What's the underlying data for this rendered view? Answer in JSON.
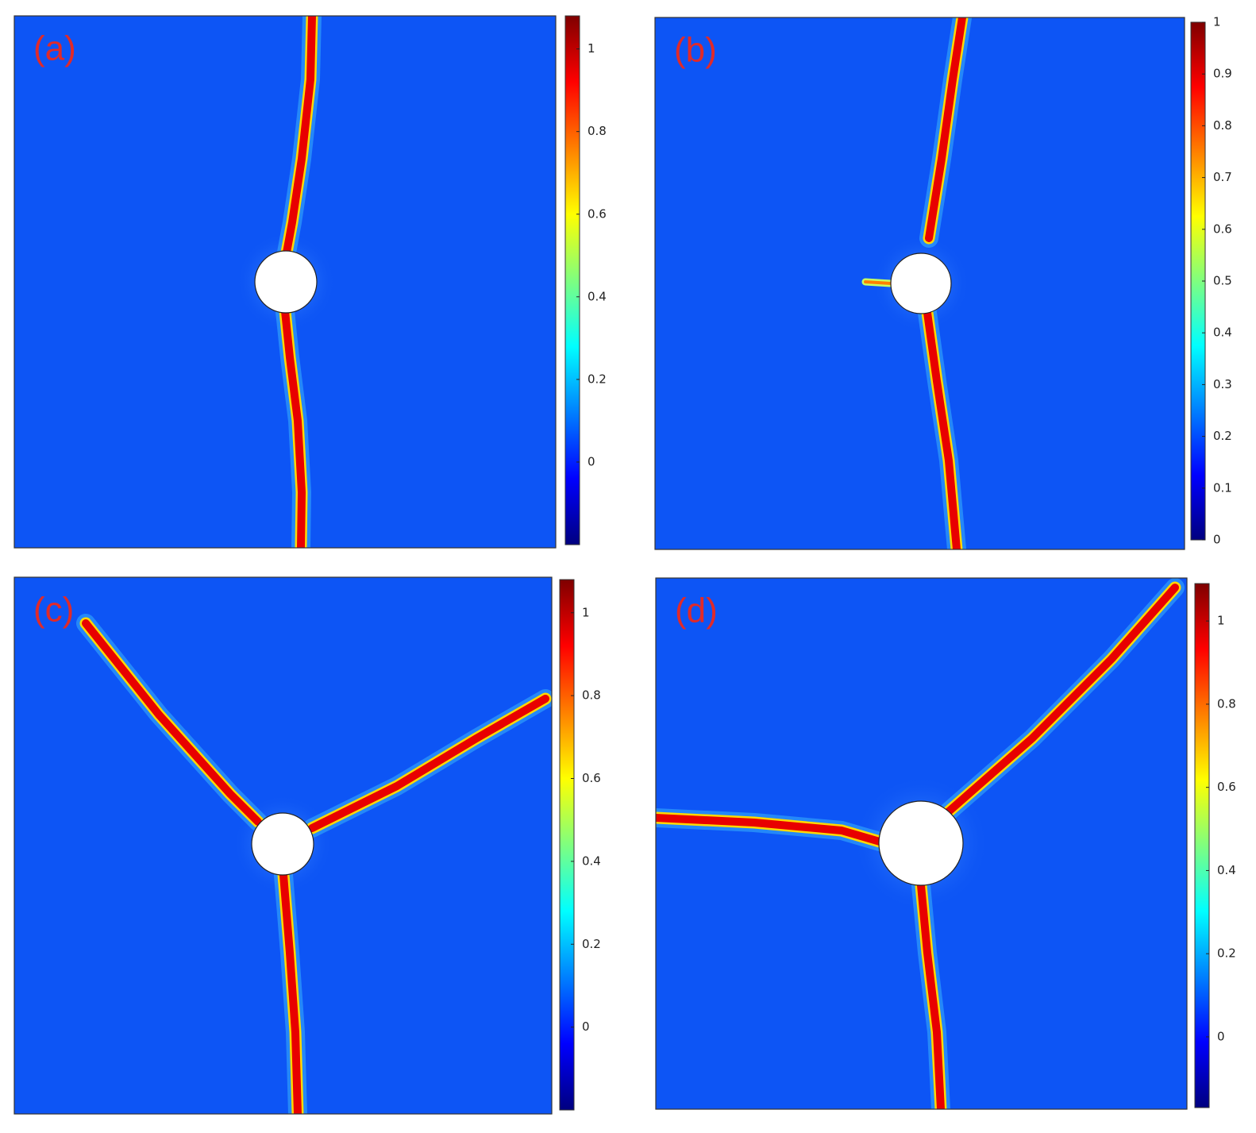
{
  "panels": [
    {
      "label": "(a)",
      "colorbar": {
        "lim": [
          -0.2,
          1.08
        ],
        "ticks": [
          0,
          0.2,
          0.4,
          0.6,
          0.8,
          1
        ]
      }
    },
    {
      "label": "(b)",
      "colorbar": {
        "lim": [
          0,
          1
        ],
        "ticks": [
          0,
          0.1,
          0.2,
          0.3,
          0.4,
          0.5,
          0.6,
          0.7,
          0.8,
          0.9,
          1
        ]
      }
    },
    {
      "label": "(c)",
      "colorbar": {
        "lim": [
          -0.2,
          1.08
        ],
        "ticks": [
          0,
          0.2,
          0.4,
          0.6,
          0.8,
          1
        ]
      }
    },
    {
      "label": "(d)",
      "colorbar": {
        "lim": [
          -0.17,
          1.09
        ],
        "ticks": [
          0,
          0.2,
          0.4,
          0.6,
          0.8,
          1
        ]
      }
    }
  ]
}
